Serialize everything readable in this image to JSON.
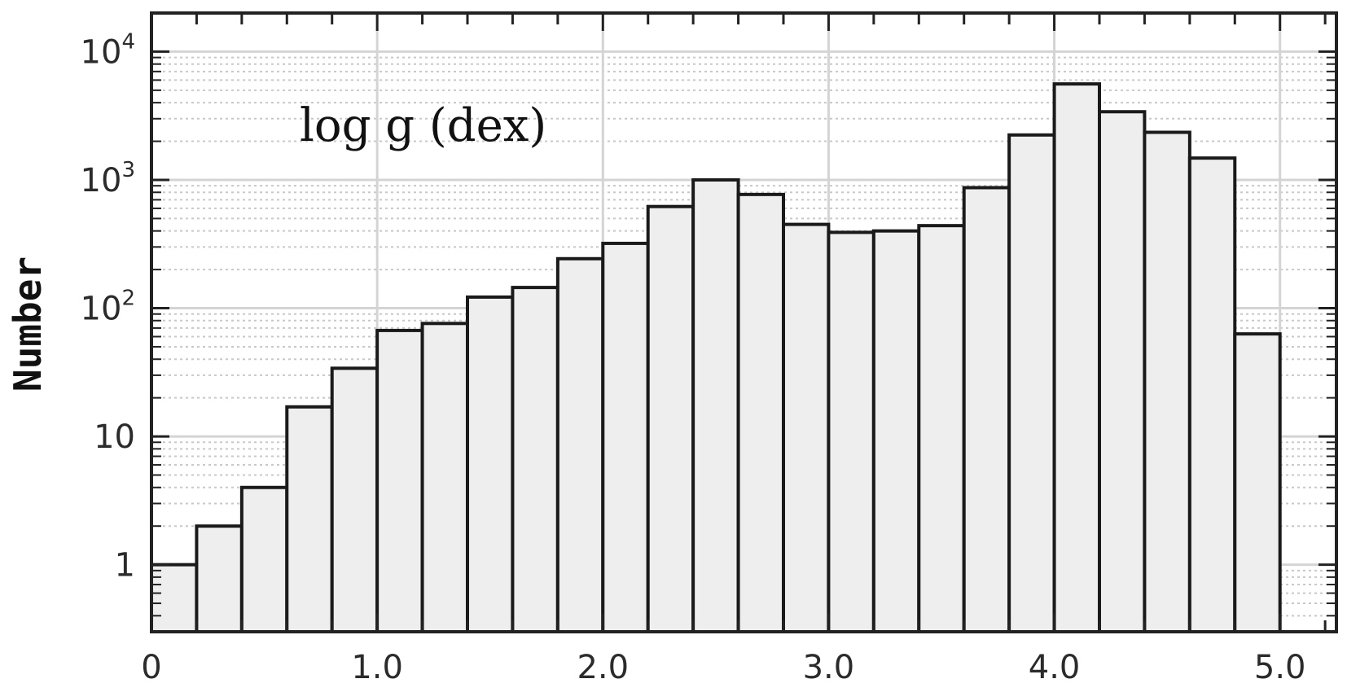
{
  "chart_data": {
    "type": "bar",
    "title": "",
    "xlabel": "",
    "ylabel": "Number",
    "annotation": "log g (dex)",
    "x_scale": "linear",
    "y_scale": "log",
    "xlim": [
      0,
      5.25
    ],
    "ylim": [
      0.3,
      20000
    ],
    "bin_width": 0.2,
    "bin_starts": [
      0,
      0.2,
      0.4,
      0.6,
      0.8,
      1.0,
      1.2,
      1.4,
      1.6,
      1.8,
      2.0,
      2.2,
      2.4,
      2.6,
      2.8,
      3.0,
      3.2,
      3.4,
      3.6,
      3.8,
      4.0,
      4.2,
      4.4,
      4.6,
      4.8
    ],
    "values": [
      1,
      2,
      4,
      17,
      34,
      67,
      76,
      122,
      145,
      243,
      320,
      620,
      1000,
      770,
      450,
      390,
      400,
      440,
      870,
      2240,
      5600,
      3400,
      2350,
      1480,
      63
    ],
    "x_ticks": [
      {
        "value": 0,
        "label": "0"
      },
      {
        "value": 1,
        "label": "1.0"
      },
      {
        "value": 2,
        "label": "2.0"
      },
      {
        "value": 3,
        "label": "3.0"
      },
      {
        "value": 4,
        "label": "4.0"
      },
      {
        "value": 5,
        "label": "5.0"
      }
    ],
    "y_ticks": [
      {
        "value": 1,
        "base": "1",
        "exp": ""
      },
      {
        "value": 10,
        "base": "10",
        "exp": ""
      },
      {
        "value": 100,
        "base": "10",
        "exp": "2"
      },
      {
        "value": 1000,
        "base": "10",
        "exp": "3"
      },
      {
        "value": 10000,
        "base": "10",
        "exp": "4"
      }
    ],
    "grid": true,
    "legend": "none",
    "colors": {
      "bar_fill": "#eeeeee",
      "bar_edge": "#1a1a1a",
      "grid_major": "#d4d4d4",
      "grid_minor": "#c8c8c8",
      "axis": "#222222"
    }
  }
}
